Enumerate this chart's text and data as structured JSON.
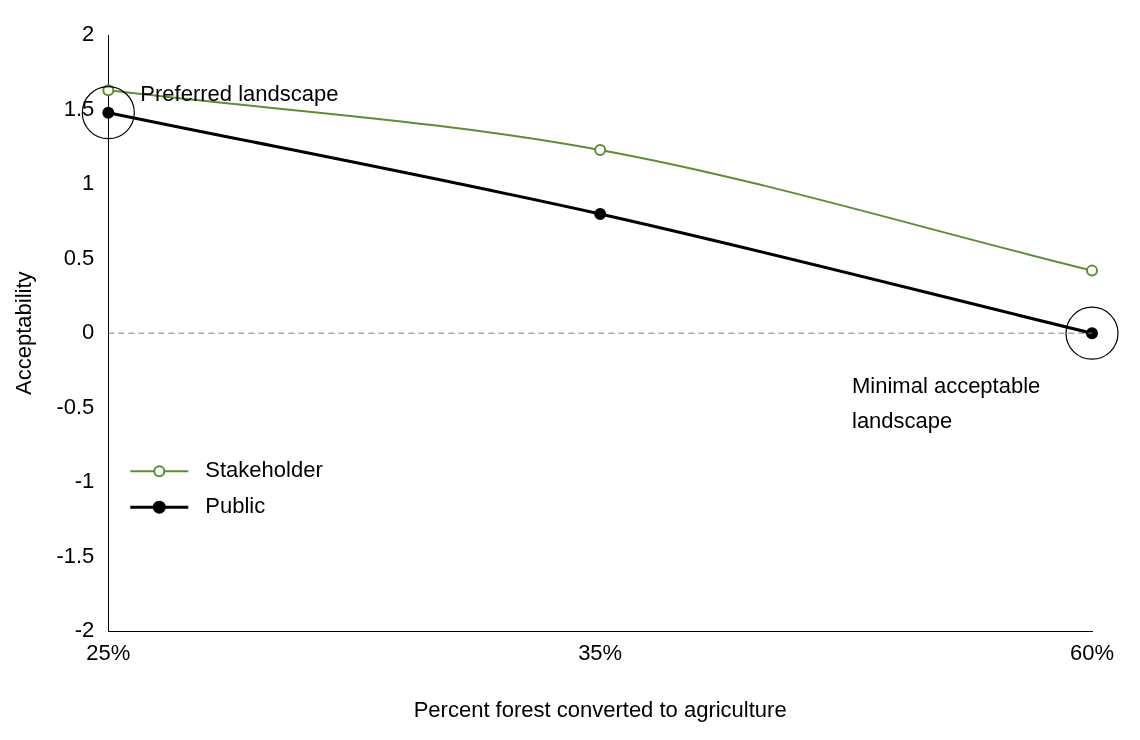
{
  "chart_data": {
    "type": "line",
    "xlabel": "Percent forest converted to agriculture",
    "ylabel": "Acceptability",
    "categories": [
      "25%",
      "35%",
      "60%"
    ],
    "series": [
      {
        "name": "Stakeholder",
        "color": "#5b8f30",
        "values": [
          1.63,
          1.23,
          0.42
        ],
        "marker": "circle"
      },
      {
        "name": "Public",
        "color": "#000000",
        "values": [
          1.48,
          0.8,
          0.0
        ],
        "marker": "circle"
      }
    ],
    "ylim": [
      -2,
      2
    ],
    "yticks": [
      -2,
      -1.5,
      -1,
      -0.5,
      0,
      0.5,
      1,
      1.5,
      2
    ],
    "grid": false,
    "legend": "bottom left",
    "ref_lines": [
      {
        "axis": "y",
        "value": 0,
        "color": "#808080",
        "line_style": "dashed"
      }
    ],
    "annotations": [
      {
        "text": "Preferred landscape",
        "x": "25%",
        "y": 1.48
      },
      {
        "text": "Minimal acceptable landscape",
        "x": "60%",
        "y": 0
      }
    ]
  }
}
